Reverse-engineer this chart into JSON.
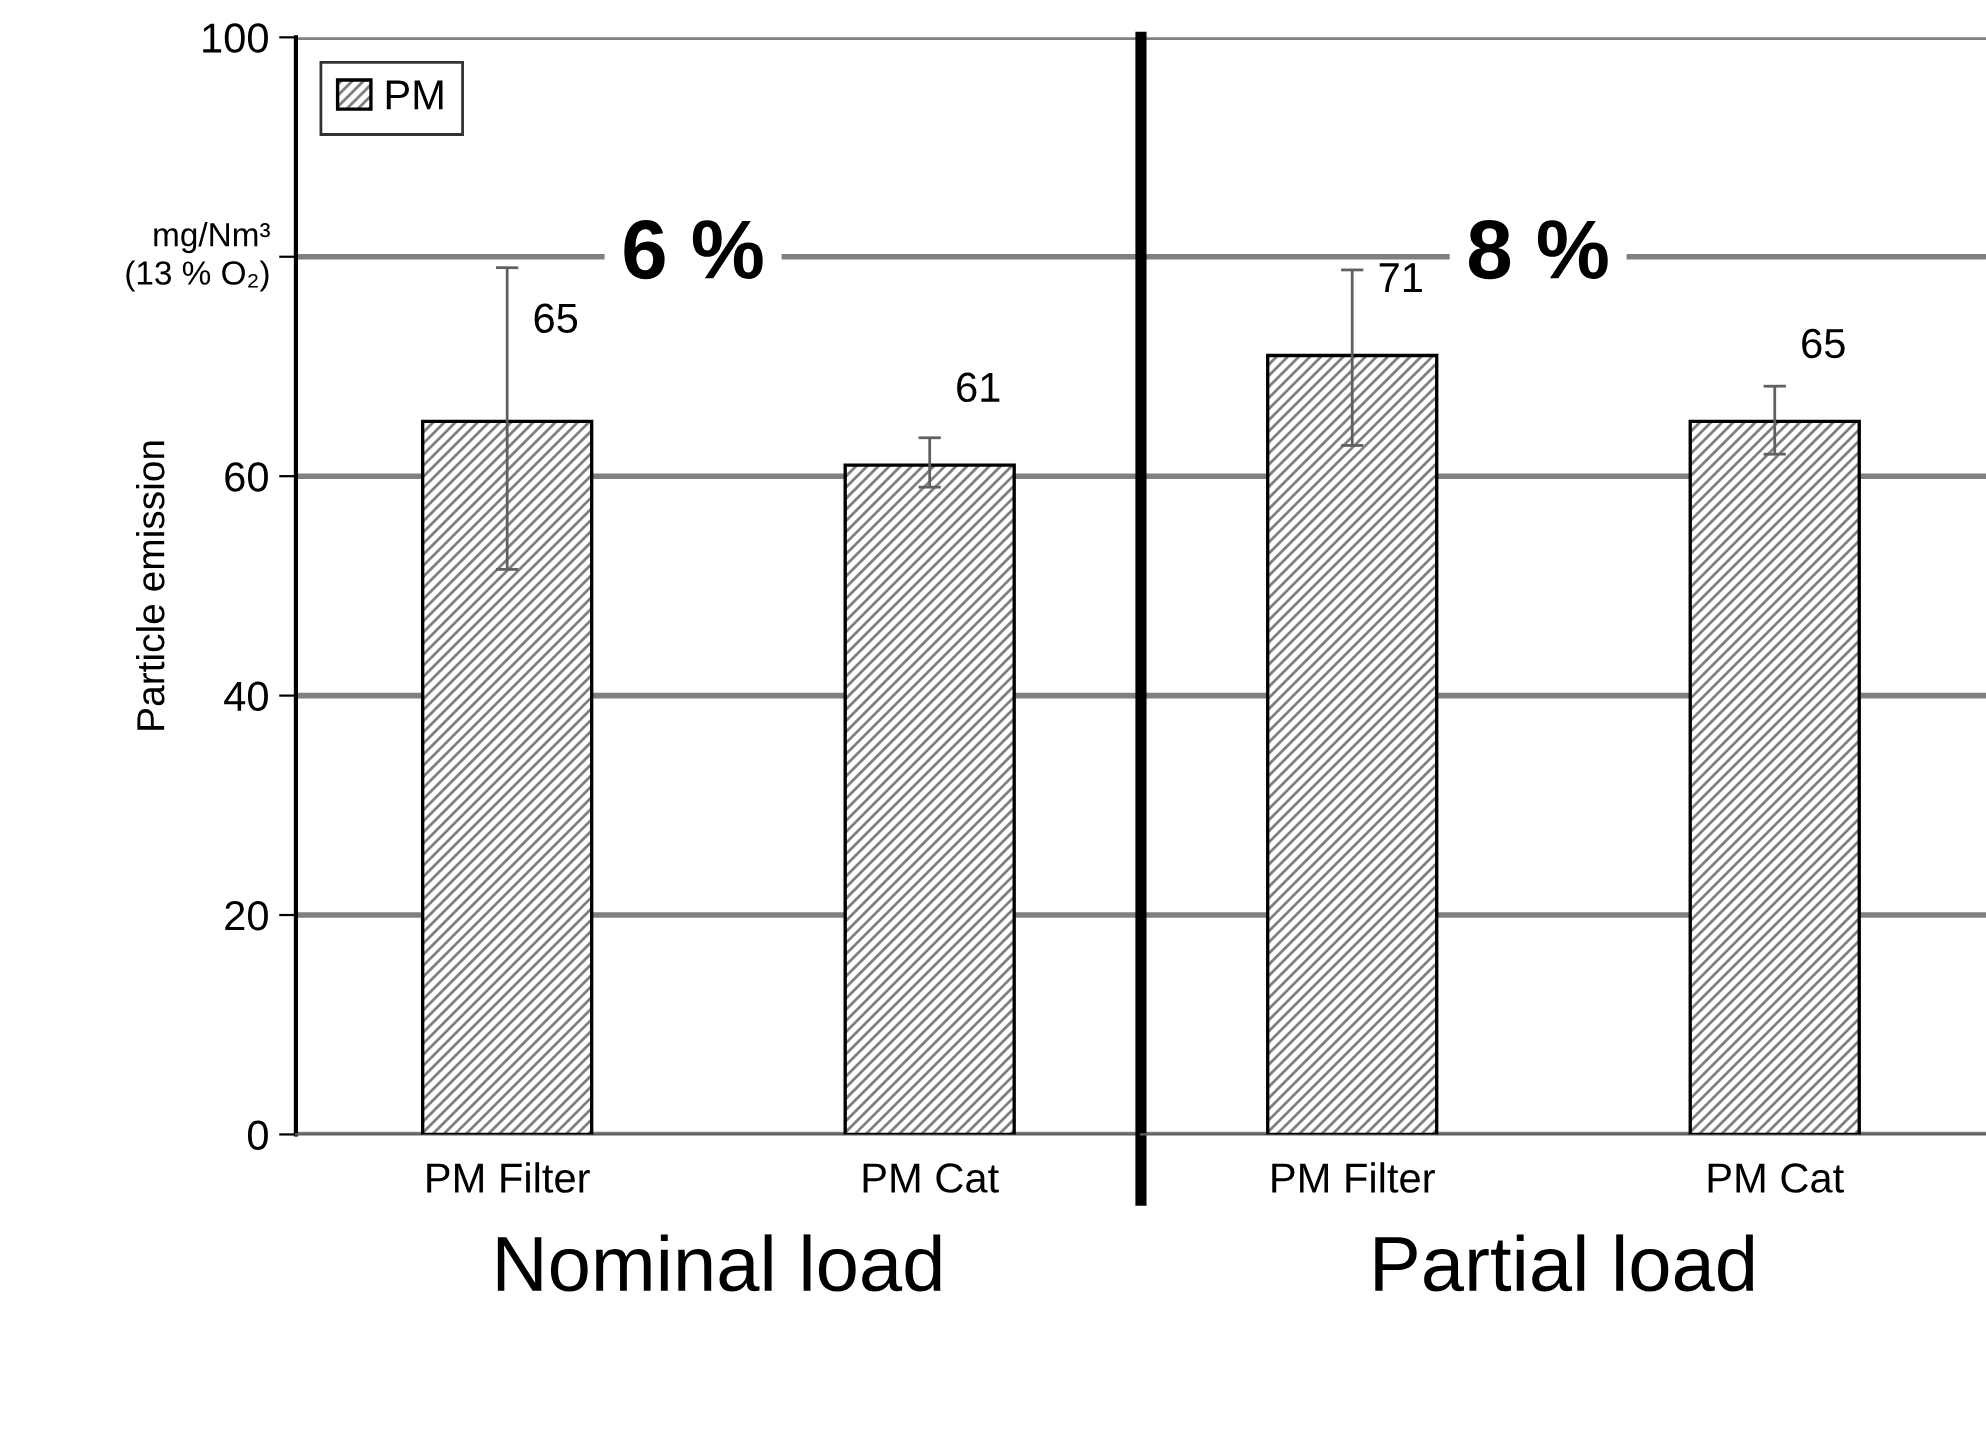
{
  "chart_data": [
    {
      "type": "bar",
      "categories": [
        "PM Filter",
        "PM Cat"
      ],
      "xlabel": "Nominal load",
      "ylabel": "Particle emission",
      "series": [
        {
          "name": "PM",
          "color": "#000000",
          "values": [
            65,
            61
          ],
          "errors": [
            [
              51.5,
              79
            ],
            [
              59,
              63.5
            ]
          ]
        }
      ],
      "ylim": [
        0,
        100
      ],
      "yticks": [
        0,
        20,
        40,
        60,
        {
          "value": 80,
          "label": null
        },
        100
      ],
      "annotations": [
        "6 %",
        "mg/Nm³\n(13 % O₂)"
      ],
      "data_labels": true,
      "grid": "y",
      "legend": "top left"
    },
    {
      "type": "bar",
      "categories": [
        "PM Filter",
        "PM Cat"
      ],
      "xlabel": "Partial load",
      "series": [
        {
          "color": "#000000",
          "values": [
            71,
            65
          ],
          "errors": [
            [
              62.8,
              78.8
            ],
            [
              62,
              68.2
            ]
          ]
        }
      ],
      "ylim": [
        0,
        100
      ],
      "yticks": [
        0,
        20,
        40,
        60,
        80,
        100
      ],
      "tick_labels": "x",
      "annotations": [
        "8 %"
      ],
      "data_labels": true,
      "grid": "y"
    }
  ]
}
